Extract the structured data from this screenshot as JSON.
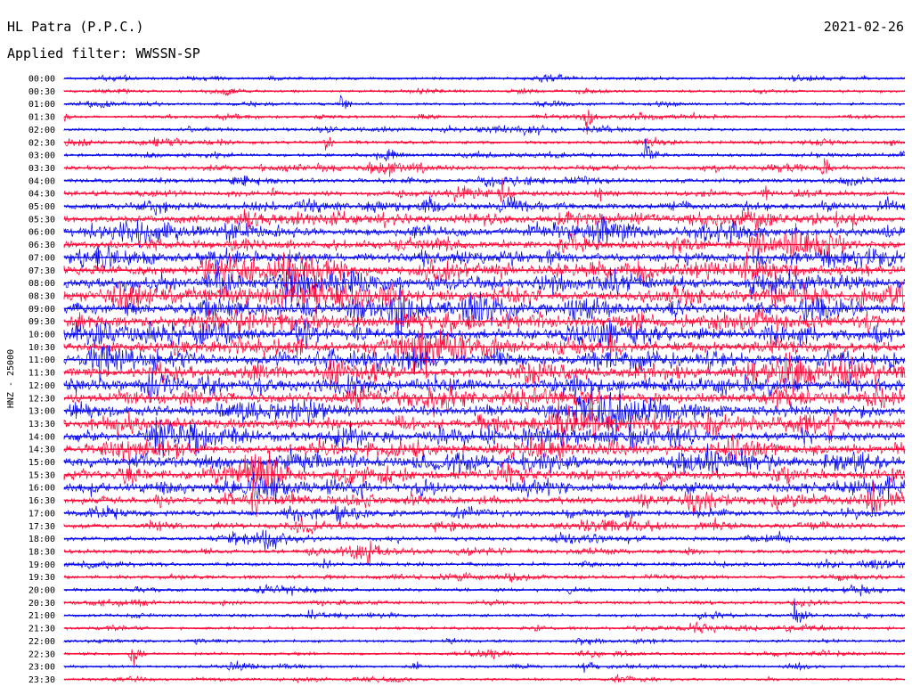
{
  "header": {
    "station": "HL Patra (P.P.C.)",
    "filter": "Applied filter: WWSSN-SP",
    "date": "2021-02-26"
  },
  "chart_data": {
    "type": "line",
    "channel_label": "HNZ - 25000",
    "row_labels": [
      "00:00",
      "00:30",
      "01:00",
      "01:30",
      "02:00",
      "02:30",
      "03:00",
      "03:30",
      "04:00",
      "04:30",
      "05:00",
      "05:30",
      "06:00",
      "06:30",
      "07:00",
      "07:30",
      "08:00",
      "08:30",
      "09:00",
      "09:30",
      "10:00",
      "10:30",
      "11:00",
      "11:30",
      "12:00",
      "12:30",
      "13:00",
      "13:30",
      "14:00",
      "14:30",
      "15:00",
      "15:30",
      "16:00",
      "16:30",
      "17:00",
      "17:30",
      "18:00",
      "18:30",
      "19:00",
      "19:30",
      "20:00",
      "20:30",
      "21:00",
      "21:30",
      "22:00",
      "22:30",
      "23:00",
      "23:30"
    ],
    "colors": {
      "even_rows": "#0000ee",
      "odd_rows": "#ff0033"
    },
    "activity_profile": [
      0.9,
      0.9,
      0.9,
      0.9,
      1.0,
      1.1,
      1.2,
      1.4,
      1.6,
      1.9,
      2.3,
      2.7,
      3.1,
      3.4,
      3.7,
      4.0,
      4.2,
      4.3,
      4.4,
      4.4,
      4.4,
      4.3,
      4.3,
      4.2,
      4.2,
      4.1,
      4.0,
      4.0,
      3.9,
      3.9,
      3.8,
      3.7,
      3.5,
      2.9,
      2.3,
      1.9,
      1.6,
      1.5,
      1.4,
      1.3,
      1.3,
      1.2,
      1.1,
      1.0,
      0.9,
      0.9,
      0.85,
      0.8
    ]
  }
}
